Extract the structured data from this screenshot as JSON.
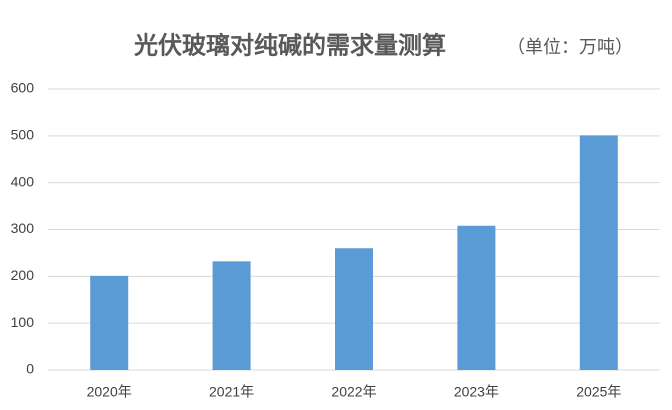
{
  "chart_data": {
    "type": "bar",
    "title": "光伏玻璃对纯碱的需求量测算",
    "subtitle": "（单位：万吨）",
    "categories": [
      "2020年",
      "2021年",
      "2022年",
      "2023年",
      "2025年"
    ],
    "values": [
      201,
      232,
      260,
      308,
      501
    ],
    "color": "#5b9bd5",
    "ylim": [
      0,
      600
    ],
    "yticks": [
      0,
      100,
      200,
      300,
      400,
      500,
      600
    ],
    "grid": true
  }
}
